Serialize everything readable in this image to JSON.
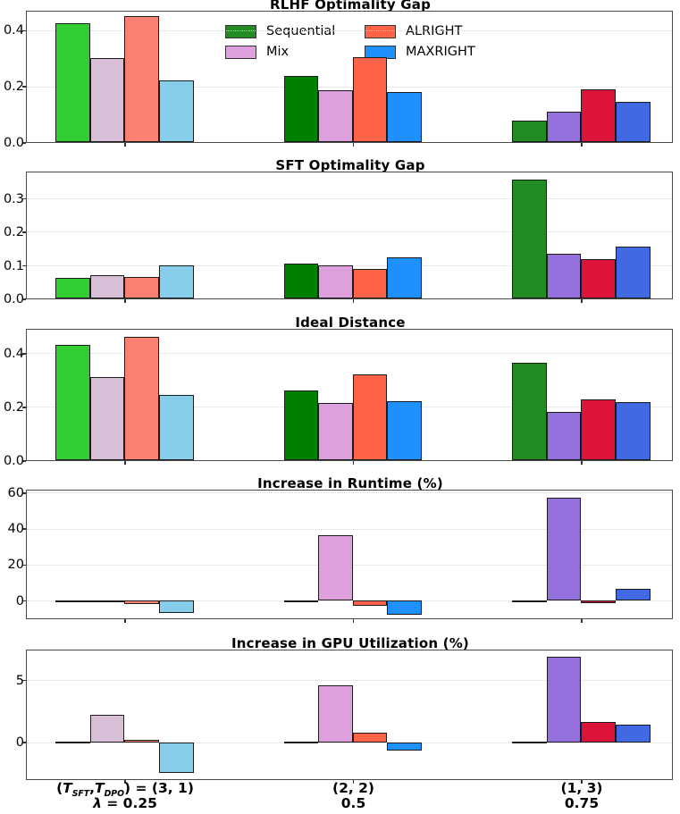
{
  "legend": {
    "items": [
      {
        "label": "Sequential",
        "color": "#228B22"
      },
      {
        "label": "Mix",
        "color": "#DDA0DD"
      },
      {
        "label": "ALRIGHT",
        "color": "#FF6347"
      },
      {
        "label": "MAXRIGHT",
        "color": "#1E90FF"
      }
    ]
  },
  "x_axis": {
    "group_labels": [
      {
        "line1": "(T_{SFT},T_{DPO}) = (3, 1)",
        "line2": "λ = 0.25"
      },
      {
        "line1": "(2, 2)",
        "line2": "0.5"
      },
      {
        "line1": "(1, 3)",
        "line2": "0.75"
      }
    ]
  },
  "palette": {
    "group_colors": [
      [
        "#32CD32",
        "#D8BFD8",
        "#FA8072",
        "#87CEEB"
      ],
      [
        "#008000",
        "#DDA0DD",
        "#FF6347",
        "#1E90FF"
      ],
      [
        "#228B22",
        "#9370DB",
        "#DC143C",
        "#4169E1"
      ]
    ],
    "bar_edge": "#1c1c1c",
    "grid": "#d6d6d6",
    "spine": "#4a4a4a"
  },
  "chart_data": [
    {
      "type": "bar",
      "title": "RLHF Optimality Gap",
      "categories": [
        "(3, 1)",
        "(2, 2)",
        "(1, 3)"
      ],
      "series": [
        {
          "name": "Sequential",
          "values": [
            0.425,
            0.238,
            0.078
          ]
        },
        {
          "name": "Mix",
          "values": [
            0.302,
            0.187,
            0.108
          ]
        },
        {
          "name": "ALRIGHT",
          "values": [
            0.45,
            0.303,
            0.188
          ]
        },
        {
          "name": "MAXRIGHT",
          "values": [
            0.22,
            0.18,
            0.145
          ]
        }
      ],
      "ylim": [
        0,
        0.465
      ],
      "yticks": [
        0,
        0.2,
        0.4
      ],
      "ytick_labels": [
        "0.0",
        "0.2",
        "0.4"
      ],
      "grid": true,
      "legend_position": "upper center"
    },
    {
      "type": "bar",
      "title": "SFT Optimality Gap",
      "categories": [
        "(3, 1)",
        "(2, 2)",
        "(1, 3)"
      ],
      "series": [
        {
          "name": "Sequential",
          "values": [
            0.062,
            0.105,
            0.355
          ]
        },
        {
          "name": "Mix",
          "values": [
            0.07,
            0.101,
            0.135
          ]
        },
        {
          "name": "ALRIGHT",
          "values": [
            0.066,
            0.088,
            0.119
          ]
        },
        {
          "name": "MAXRIGHT",
          "values": [
            0.1,
            0.123,
            0.157
          ]
        }
      ],
      "ylim": [
        0,
        0.376
      ],
      "yticks": [
        0,
        0.1,
        0.2,
        0.3
      ],
      "ytick_labels": [
        "0.0",
        "0.1",
        "0.2",
        "0.3"
      ],
      "grid": true
    },
    {
      "type": "bar",
      "title": "Ideal Distance",
      "categories": [
        "(3, 1)",
        "(2, 2)",
        "(1, 3)"
      ],
      "series": [
        {
          "name": "Sequential",
          "values": [
            0.43,
            0.263,
            0.365
          ]
        },
        {
          "name": "Mix",
          "values": [
            0.31,
            0.215,
            0.18
          ]
        },
        {
          "name": "ALRIGHT",
          "values": [
            0.46,
            0.32,
            0.228
          ]
        },
        {
          "name": "MAXRIGHT",
          "values": [
            0.245,
            0.222,
            0.218
          ]
        }
      ],
      "ylim": [
        0,
        0.487
      ],
      "yticks": [
        0,
        0.2,
        0.4
      ],
      "ytick_labels": [
        "0.0",
        "0.2",
        "0.4"
      ],
      "grid": true
    },
    {
      "type": "bar",
      "title": "Increase in Runtime (%)",
      "categories": [
        "(3, 1)",
        "(2, 2)",
        "(1, 3)"
      ],
      "series": [
        {
          "name": "Sequential",
          "values": [
            -0.4,
            -0.3,
            -0.3
          ]
        },
        {
          "name": "Mix",
          "values": [
            -1.0,
            36.5,
            57.2
          ]
        },
        {
          "name": "ALRIGHT",
          "values": [
            -2.0,
            -3.1,
            -1.4
          ]
        },
        {
          "name": "MAXRIGHT",
          "values": [
            -7.0,
            -8.0,
            6.3
          ]
        }
      ],
      "ylim": [
        -10.1,
        61
      ],
      "yticks": [
        0,
        20,
        40,
        60
      ],
      "ytick_labels": [
        "0",
        "20",
        "40",
        "60"
      ],
      "grid": true
    },
    {
      "type": "bar",
      "title": "Increase in GPU Utilization (%)",
      "categories": [
        "(3, 1)",
        "(2, 2)",
        "(1, 3)"
      ],
      "series": [
        {
          "name": "Sequential",
          "values": [
            0.05,
            0.05,
            0.05
          ]
        },
        {
          "name": "Mix",
          "values": [
            2.2,
            4.6,
            6.9
          ]
        },
        {
          "name": "ALRIGHT",
          "values": [
            0.18,
            0.75,
            1.6
          ]
        },
        {
          "name": "MAXRIGHT",
          "values": [
            -2.5,
            -0.65,
            1.4
          ]
        }
      ],
      "ylim": [
        -3.0,
        7.35
      ],
      "yticks": [
        0,
        5
      ],
      "ytick_labels": [
        "0",
        "5"
      ],
      "grid": true
    }
  ]
}
